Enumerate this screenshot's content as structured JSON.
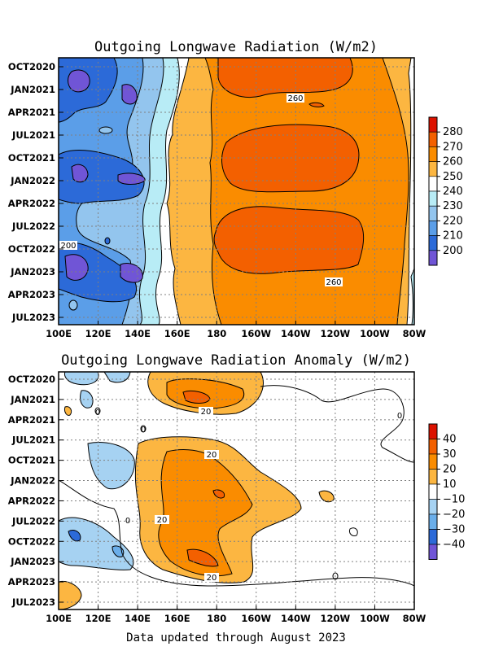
{
  "footer": "Data updated through August 2023",
  "chart_data": [
    {
      "type": "heatmap",
      "title": "Outgoing Longwave Radiation (W/m2)",
      "x_ticks": [
        "100E",
        "120E",
        "140E",
        "160E",
        "180",
        "160W",
        "140W",
        "120W",
        "100W",
        "80W"
      ],
      "y_ticks": [
        "OCT2020",
        "JAN2021",
        "APR2021",
        "JUL2021",
        "OCT2021",
        "JAN2022",
        "APR2022",
        "JUL2022",
        "OCT2022",
        "JAN2023",
        "APR2023",
        "JUL2023"
      ],
      "colorbar_labels": [
        "280",
        "270",
        "260",
        "250",
        "240",
        "230",
        "220",
        "210",
        "200"
      ],
      "colors": [
        "#dc1200",
        "#f36000",
        "#fa8c00",
        "#fcb641",
        "#ffffff",
        "#b8ecf6",
        "#93c5ee",
        "#5b9ee8",
        "#2c6ad8",
        "#7055d6"
      ],
      "contour_labels": [
        "260",
        "260",
        "200"
      ],
      "bands": [
        {
          "x": [
            "100E",
            "120E",
            "140E",
            "160E",
            "180",
            "160W",
            "140W",
            "120W",
            "100W",
            "80W"
          ],
          "y": "OCT2020",
          "values": [
            215,
            200,
            220,
            245,
            262,
            268,
            268,
            262,
            250,
            240
          ]
        },
        {
          "x": [
            "100E",
            "120E",
            "140E",
            "160E",
            "180",
            "160W",
            "140W",
            "120W",
            "100W",
            "80W"
          ],
          "y": "APR2021",
          "values": [
            210,
            215,
            230,
            250,
            262,
            266,
            262,
            258,
            250,
            240
          ]
        },
        {
          "x": [
            "100E",
            "120E",
            "140E",
            "160E",
            "180",
            "160W",
            "140W",
            "120W",
            "100W",
            "80W"
          ],
          "y": "OCT2021",
          "values": [
            215,
            212,
            225,
            248,
            262,
            268,
            268,
            265,
            250,
            240
          ]
        },
        {
          "x": [
            "100E",
            "120E",
            "140E",
            "160E",
            "180",
            "160W",
            "140W",
            "120W",
            "100W",
            "80W"
          ],
          "y": "APR2022",
          "values": [
            210,
            212,
            222,
            248,
            258,
            262,
            262,
            258,
            250,
            240
          ]
        },
        {
          "x": [
            "100E",
            "120E",
            "140E",
            "160E",
            "180",
            "160W",
            "140W",
            "120W",
            "100W",
            "80W"
          ],
          "y": "OCT2022",
          "values": [
            205,
            210,
            220,
            245,
            262,
            268,
            265,
            262,
            250,
            240
          ]
        },
        {
          "x": [
            "100E",
            "120E",
            "140E",
            "160E",
            "180",
            "160W",
            "140W",
            "120W",
            "100W",
            "80W"
          ],
          "y": "JUL2023",
          "values": [
            215,
            220,
            232,
            250,
            258,
            258,
            258,
            255,
            250,
            240
          ]
        }
      ]
    },
    {
      "type": "heatmap",
      "title": "Outgoing Longwave Radiation Anomaly (W/m2)",
      "x_ticks": [
        "100E",
        "120E",
        "140E",
        "160E",
        "180",
        "160W",
        "140W",
        "120W",
        "100W",
        "80W"
      ],
      "y_ticks": [
        "OCT2020",
        "JAN2021",
        "APR2021",
        "JUL2021",
        "OCT2021",
        "JAN2022",
        "APR2022",
        "JUL2022",
        "OCT2022",
        "JAN2023",
        "APR2023",
        "JUL2023"
      ],
      "colorbar_labels": [
        "40",
        "30",
        "20",
        "10",
        "−10",
        "−20",
        "−30",
        "−40"
      ],
      "colors": [
        "#dc1200",
        "#f36000",
        "#fa8c00",
        "#fcb641",
        "#ffffff",
        "#a6d2f2",
        "#6aaeea",
        "#2c6ad8",
        "#7055d6"
      ],
      "contour_labels": [
        "20",
        "20",
        "20",
        "20",
        "0",
        "0",
        "0",
        "0"
      ],
      "bands": [
        {
          "x": [
            "100E",
            "120E",
            "140E",
            "160E",
            "180",
            "160W",
            "140W",
            "120W",
            "100W",
            "80W"
          ],
          "y": "JAN2021",
          "values": [
            0,
            -5,
            0,
            15,
            28,
            20,
            5,
            0,
            0,
            0
          ]
        },
        {
          "x": [
            "100E",
            "120E",
            "140E",
            "160E",
            "180",
            "160W",
            "140W",
            "120W",
            "100W",
            "80W"
          ],
          "y": "JAN2022",
          "values": [
            0,
            -12,
            -5,
            15,
            25,
            18,
            10,
            0,
            0,
            0
          ]
        },
        {
          "x": [
            "100E",
            "120E",
            "140E",
            "160E",
            "180",
            "160W",
            "140W",
            "120W",
            "100W",
            "80W"
          ],
          "y": "OCT2022",
          "values": [
            -30,
            -15,
            0,
            18,
            22,
            15,
            0,
            0,
            0,
            0
          ]
        },
        {
          "x": [
            "100E",
            "120E",
            "140E",
            "160E",
            "180",
            "160W",
            "140W",
            "120W",
            "100W",
            "80W"
          ],
          "y": "JAN2023",
          "values": [
            -15,
            -12,
            5,
            20,
            30,
            20,
            5,
            0,
            0,
            0
          ]
        },
        {
          "x": [
            "100E",
            "120E",
            "140E",
            "160E",
            "180",
            "160W",
            "140W",
            "120W",
            "100W",
            "80W"
          ],
          "y": "JUL2023",
          "values": [
            15,
            0,
            0,
            0,
            0,
            0,
            0,
            0,
            0,
            0
          ]
        }
      ]
    }
  ]
}
